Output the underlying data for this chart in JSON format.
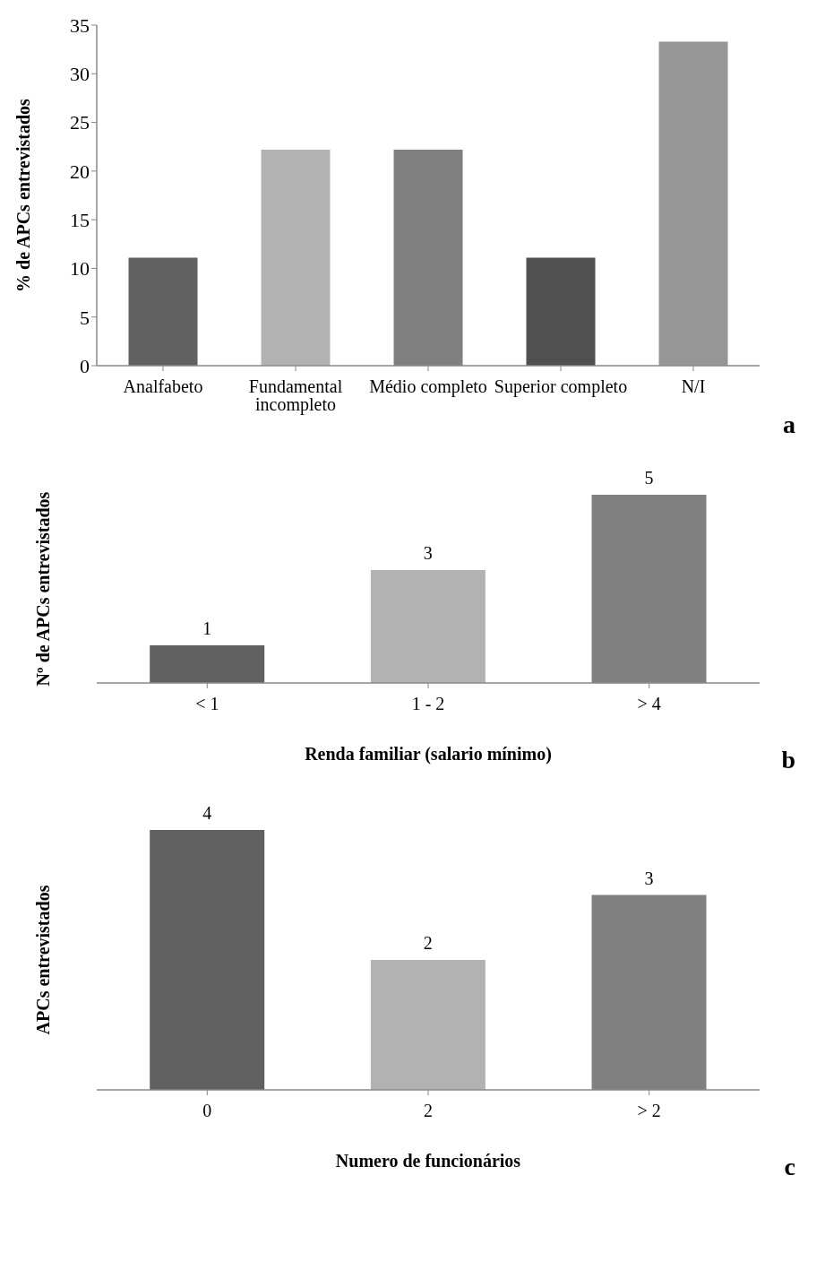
{
  "chart_data": [
    {
      "type": "bar",
      "categories": [
        "Analfabeto",
        "Fundamental incompleto",
        "Médio completo",
        "Superior completo",
        "N/I"
      ],
      "values": [
        11.1,
        22.2,
        22.2,
        11.1,
        33.3
      ],
      "colors": [
        "#616161",
        "#b2b2b2",
        "#808080",
        "#505050",
        "#969696"
      ],
      "ylabel": "% de APCs entrevistados",
      "ylim": [
        0,
        35
      ],
      "yticks": [
        0,
        5,
        10,
        15,
        20,
        25,
        30,
        35
      ],
      "annotations": [
        "a"
      ]
    },
    {
      "type": "bar",
      "categories": [
        "< 1",
        "1 - 2",
        "> 4"
      ],
      "values": [
        1,
        3,
        5
      ],
      "colors": [
        "#616161",
        "#b2b2b2",
        "#808080"
      ],
      "ylabel": "Nº de APCs entrevistados",
      "xlabel": "Renda familiar (salario mínimo)",
      "data_labels": true,
      "tick_labels": "x",
      "annotations": [
        "b"
      ]
    },
    {
      "type": "bar",
      "categories": [
        "0",
        "2",
        "> 2"
      ],
      "values": [
        4,
        2,
        3
      ],
      "colors": [
        "#616161",
        "#b2b2b2",
        "#808080"
      ],
      "ylabel": "APCs entrevistados",
      "xlabel": "Numero de funcionários",
      "data_labels": true,
      "tick_labels": "x",
      "annotations": [
        "c"
      ]
    }
  ]
}
